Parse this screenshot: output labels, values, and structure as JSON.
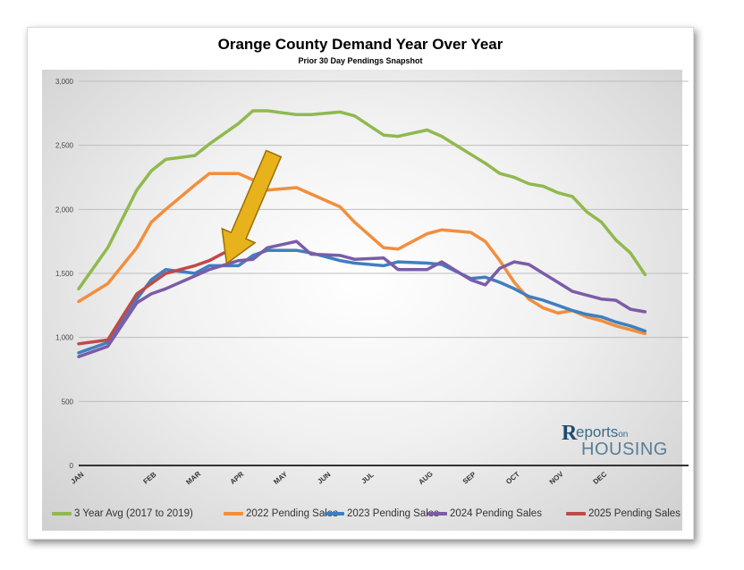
{
  "chart_data": {
    "type": "line",
    "title": "Orange County Demand Year Over Year",
    "subtitle": "Prior 30 Day Pendings Snapshot",
    "xlabel": "",
    "ylabel": "",
    "ylim": [
      0,
      3000
    ],
    "y_ticks": [
      "0",
      "500",
      "1,000",
      "1,500",
      "2,000",
      "2,500",
      "3,000"
    ],
    "x_ticks": [
      "JAN",
      "FEB",
      "MAR",
      "APR",
      "MAY",
      "JUN",
      "JUL",
      "AUG",
      "SEP",
      "OCT",
      "NOV",
      "DEC"
    ],
    "x_tick_positions": [
      0,
      5,
      8,
      11,
      14,
      17,
      20,
      24,
      27,
      30,
      33,
      36
    ],
    "grid": true,
    "legend_position": "bottom",
    "annotation": "arrow pointing to latest 2025 value",
    "series": [
      {
        "name": "3 Year Avg (2017 to 2019)",
        "color": "#8fb94f",
        "x": [
          0,
          2,
          4,
          5,
          6,
          8,
          9,
          11,
          12,
          13,
          15,
          16,
          18,
          19,
          21,
          22,
          24,
          25,
          27,
          28,
          29,
          30,
          31,
          32,
          33,
          34,
          35,
          36,
          37,
          38,
          39
        ],
        "values": [
          1380,
          1700,
          2150,
          2300,
          2390,
          2420,
          2510,
          2670,
          2770,
          2770,
          2740,
          2740,
          2760,
          2730,
          2580,
          2570,
          2620,
          2570,
          2430,
          2360,
          2280,
          2250,
          2200,
          2180,
          2130,
          2100,
          1980,
          1900,
          1760,
          1660,
          1490
        ]
      },
      {
        "name": "2022 Pending Sales",
        "color": "#f28e3c",
        "x": [
          0,
          2,
          4,
          5,
          6,
          8,
          9,
          11,
          12,
          13,
          15,
          16,
          18,
          19,
          21,
          22,
          24,
          25,
          27,
          28,
          29,
          30,
          31,
          32,
          33,
          34,
          35,
          36,
          37,
          38,
          39
        ],
        "values": [
          1280,
          1420,
          1700,
          1900,
          2000,
          2190,
          2280,
          2280,
          2230,
          2150,
          2170,
          2120,
          2020,
          1900,
          1700,
          1690,
          1810,
          1840,
          1820,
          1750,
          1600,
          1430,
          1300,
          1230,
          1190,
          1210,
          1160,
          1130,
          1090,
          1060,
          1030
        ]
      },
      {
        "name": "2023 Pending Sales",
        "color": "#3f7fc0",
        "x": [
          0,
          2,
          4,
          5,
          6,
          8,
          9,
          11,
          12,
          13,
          15,
          16,
          18,
          19,
          21,
          22,
          24,
          25,
          27,
          28,
          29,
          30,
          31,
          32,
          33,
          34,
          35,
          36,
          37,
          38,
          39
        ],
        "values": [
          880,
          960,
          1300,
          1450,
          1530,
          1500,
          1560,
          1560,
          1640,
          1680,
          1680,
          1660,
          1600,
          1580,
          1560,
          1590,
          1580,
          1570,
          1460,
          1470,
          1430,
          1380,
          1320,
          1290,
          1250,
          1210,
          1180,
          1160,
          1120,
          1090,
          1050
        ]
      },
      {
        "name": "2024 Pending Sales",
        "color": "#7b5ca8",
        "x": [
          0,
          2,
          4,
          5,
          6,
          8,
          9,
          11,
          12,
          13,
          15,
          16,
          18,
          19,
          21,
          22,
          24,
          25,
          27,
          28,
          29,
          30,
          31,
          32,
          33,
          34,
          35,
          36,
          37,
          38,
          39
        ],
        "values": [
          850,
          930,
          1270,
          1340,
          1380,
          1480,
          1530,
          1600,
          1610,
          1700,
          1750,
          1650,
          1640,
          1610,
          1620,
          1530,
          1530,
          1590,
          1450,
          1410,
          1540,
          1590,
          1570,
          1500,
          1430,
          1360,
          1330,
          1300,
          1290,
          1220,
          1200
        ]
      },
      {
        "name": "2025 Pending Sales",
        "color": "#c0494a",
        "x": [
          0,
          2,
          4,
          5,
          6,
          8,
          9,
          10
        ],
        "values": [
          950,
          980,
          1340,
          1420,
          1500,
          1560,
          1600,
          1660
        ]
      }
    ]
  },
  "logo": {
    "mark": "R",
    "line1_a": "eports",
    "line1_b": "on",
    "line2": "HOUSING"
  }
}
